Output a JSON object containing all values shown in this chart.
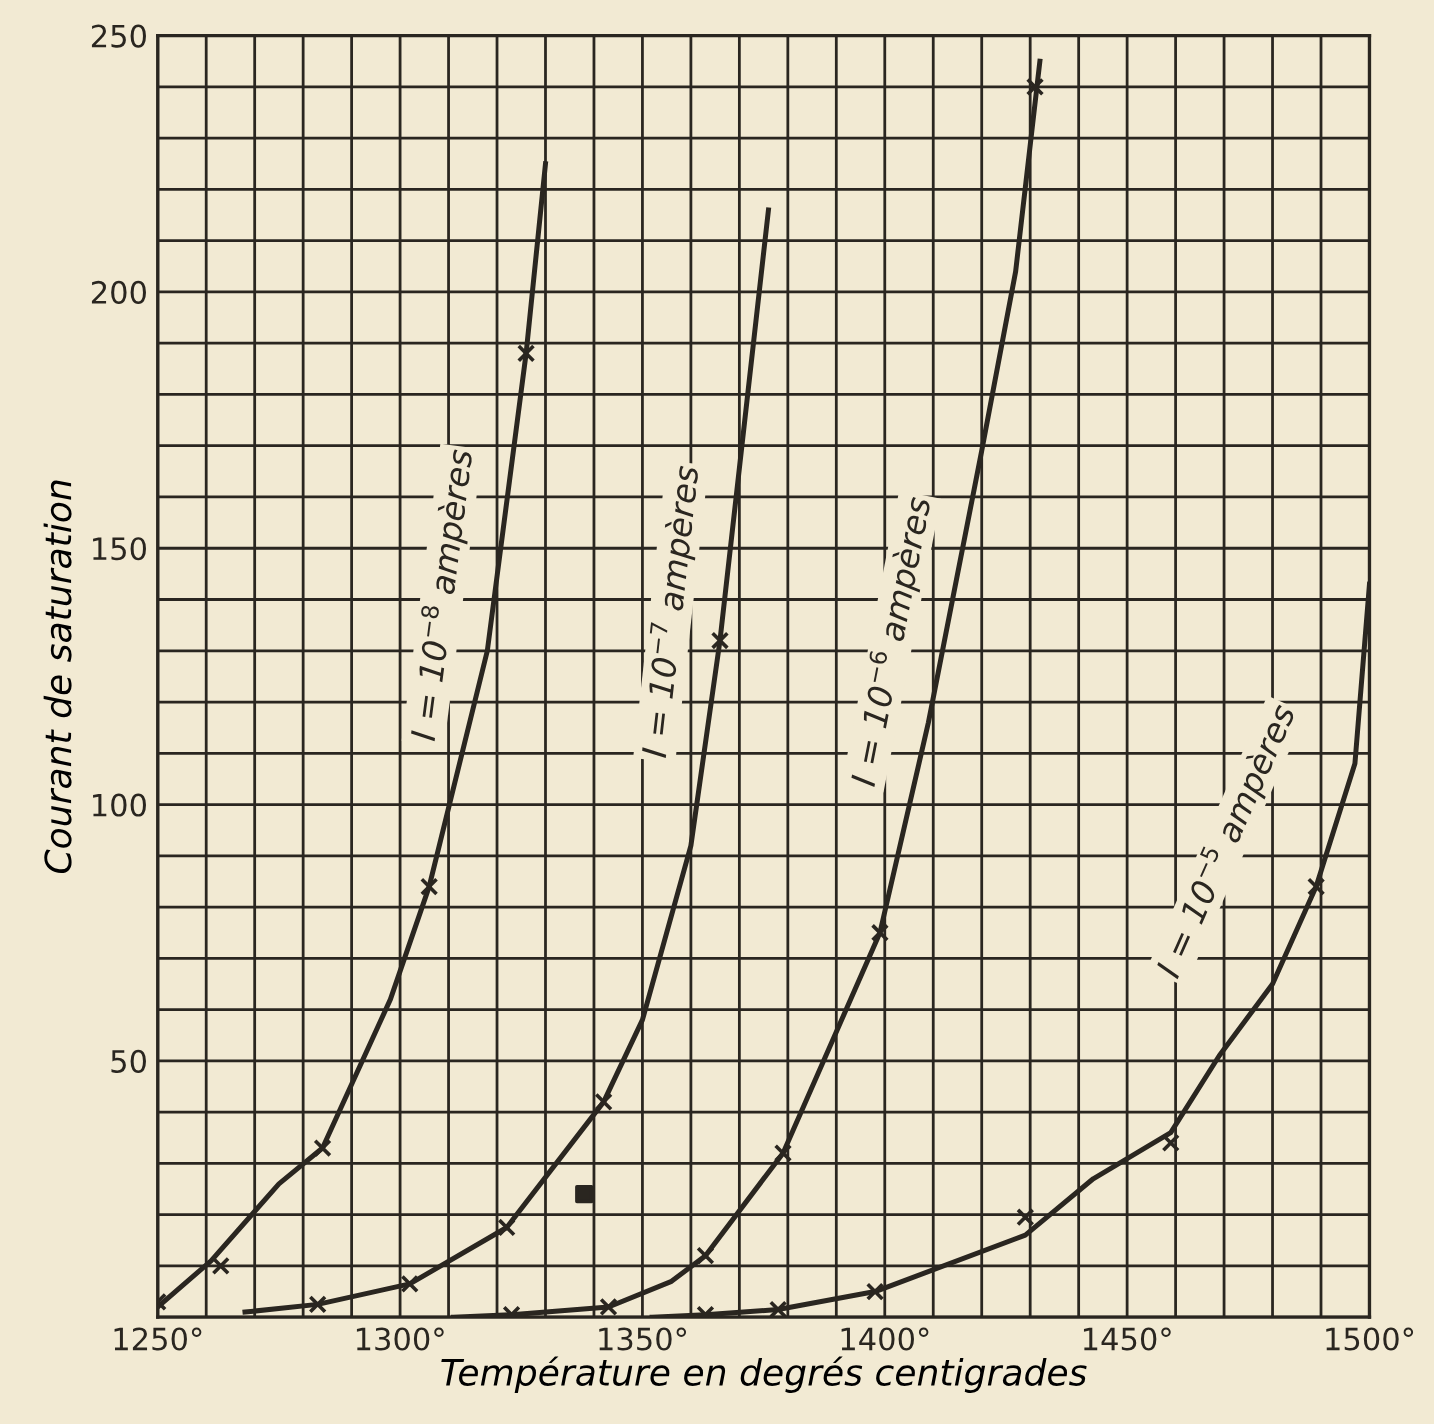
{
  "chart_data": {
    "type": "line",
    "xlabel": "Température en degrés centigrades",
    "ylabel": "Courant de saturation",
    "xlim": [
      1250,
      1500
    ],
    "ylim": [
      0,
      250
    ],
    "xticks": [
      {
        "value": 1250,
        "label": "1250°"
      },
      {
        "value": 1260,
        "label": null
      },
      {
        "value": 1270,
        "label": null
      },
      {
        "value": 1280,
        "label": null
      },
      {
        "value": 1290,
        "label": null
      },
      {
        "value": 1300,
        "label": "1300°"
      },
      {
        "value": 1310,
        "label": null
      },
      {
        "value": 1320,
        "label": null
      },
      {
        "value": 1330,
        "label": null
      },
      {
        "value": 1340,
        "label": null
      },
      {
        "value": 1350,
        "label": "1350°"
      },
      {
        "value": 1360,
        "label": null
      },
      {
        "value": 1370,
        "label": null
      },
      {
        "value": 1380,
        "label": null
      },
      {
        "value": 1390,
        "label": null
      },
      {
        "value": 1400,
        "label": "1400°"
      },
      {
        "value": 1410,
        "label": null
      },
      {
        "value": 1420,
        "label": null
      },
      {
        "value": 1430,
        "label": null
      },
      {
        "value": 1440,
        "label": null
      },
      {
        "value": 1450,
        "label": "1450°"
      },
      {
        "value": 1460,
        "label": null
      },
      {
        "value": 1470,
        "label": null
      },
      {
        "value": 1480,
        "label": null
      },
      {
        "value": 1490,
        "label": null
      },
      {
        "value": 1500,
        "label": "1500°"
      }
    ],
    "yticks": [
      {
        "value": 0,
        "label": null
      },
      {
        "value": 10,
        "label": null
      },
      {
        "value": 20,
        "label": null
      },
      {
        "value": 30,
        "label": null
      },
      {
        "value": 40,
        "label": null
      },
      50,
      {
        "value": 60,
        "label": null
      },
      {
        "value": 70,
        "label": null
      },
      {
        "value": 80,
        "label": null
      },
      {
        "value": 90,
        "label": null
      },
      100,
      {
        "value": 110,
        "label": null
      },
      {
        "value": 120,
        "label": null
      },
      {
        "value": 130,
        "label": null
      },
      {
        "value": 140,
        "label": null
      },
      150,
      {
        "value": 160,
        "label": null
      },
      {
        "value": 170,
        "label": null
      },
      {
        "value": 180,
        "label": null
      },
      {
        "value": 190,
        "label": null
      },
      200,
      {
        "value": 210,
        "label": null
      },
      {
        "value": 220,
        "label": null
      },
      {
        "value": 230,
        "label": null
      },
      {
        "value": 240,
        "label": null
      },
      250
    ],
    "grid": true,
    "legend": false,
    "series": [
      {
        "name": "I = 10$^{−8}$ ampères",
        "color": "#2a2620",
        "marker": "none",
        "x": [
          1250,
          1261,
          1275,
          1284,
          1298,
          1306,
          1318,
          1326,
          1330
        ],
        "values": [
          2,
          11,
          26,
          33,
          62,
          84,
          130,
          188,
          225
        ]
      },
      {
        "name": "I = 10$^{−7}$ ampères",
        "color": "#2a2620",
        "marker": "none",
        "x": [
          1268,
          1283,
          1302,
          1322,
          1342,
          1350,
          1360,
          1366,
          1376
        ],
        "values": [
          1,
          2.5,
          6.5,
          17.5,
          42,
          58,
          92,
          132,
          216
        ]
      },
      {
        "name": "I = 10$^{−6}$ ampères",
        "color": "#2a2620",
        "marker": "none",
        "x": [
          1311,
          1323,
          1343,
          1356,
          1363,
          1379,
          1399,
          1409,
          1420,
          1427,
          1432
        ],
        "values": [
          0,
          0.5,
          2,
          7,
          12,
          32,
          75,
          116,
          169,
          204,
          245
        ]
      },
      {
        "name": "I = 10$^{−5}$ ampères",
        "color": "#2a2620",
        "marker": "none",
        "x": [
          1352,
          1363,
          1378,
          1398,
          1429,
          1443,
          1459,
          1469,
          1480,
          1489,
          1497,
          1500
        ],
        "values": [
          0,
          0.5,
          1.5,
          5,
          16,
          27,
          36,
          51,
          65,
          84,
          108,
          143
        ]
      },
      {
        "type": "scatter",
        "color": "#2a2620",
        "marker": "cross",
        "x": [
          1250,
          1263,
          1284,
          1306,
          1326,
          1283,
          1302,
          1322,
          1342,
          1366,
          1323,
          1343,
          1363,
          1379,
          1399,
          1431,
          1363,
          1378,
          1398,
          1429,
          1459,
          1489
        ],
        "values": [
          3,
          10,
          33,
          84,
          188,
          2.5,
          6.5,
          17.5,
          42,
          132,
          0.5,
          2,
          12,
          32,
          75,
          240,
          0.5,
          1.5,
          5,
          19.5,
          34,
          84
        ]
      },
      {
        "type": "scatter",
        "color": "#2a2620",
        "marker": "square",
        "x": [
          1338
        ],
        "values": [
          24
        ]
      }
    ]
  }
}
